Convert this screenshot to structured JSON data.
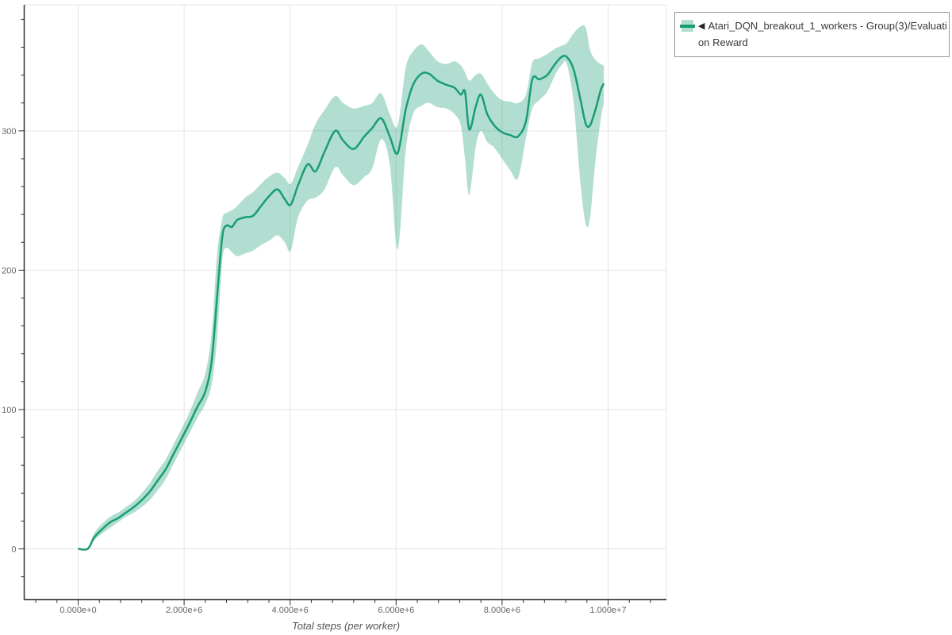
{
  "colors": {
    "line": "#199d76",
    "band": "rgba(25,157,118,0.34)",
    "grid": "#e4e4e4",
    "axis": "#2f2f2f",
    "tick_label": "#666666",
    "axis_title": "#555555",
    "legend_border": "#979797",
    "legend_text": "#3a3a3a",
    "background": "#ffffff"
  },
  "legend": {
    "toggle_icon": "left-triangle",
    "toggle_glyph": "◀",
    "label_line1": "Atari_DQN_breakout_1_workers - Group(3)/Evaluati",
    "label_line2": "on Reward",
    "full_label": "Atari_DQN_breakout_1_workers - Group(3)/Evaluation Reward"
  },
  "chart_data": {
    "type": "line",
    "title": "",
    "xlabel": "Total steps (per worker)",
    "ylabel": "",
    "grid": true,
    "legend_position": "top-right",
    "x_unit": "steps (millions)",
    "xlim_e6": [
      -1.02,
      11.1
    ],
    "ylim": [
      -36.5,
      390
    ],
    "x_ticks": [
      {
        "value_e6": 0,
        "label": "0.000e+0"
      },
      {
        "value_e6": 2,
        "label": "2.000e+6"
      },
      {
        "value_e6": 4,
        "label": "4.000e+6"
      },
      {
        "value_e6": 6,
        "label": "6.000e+6"
      },
      {
        "value_e6": 8,
        "label": "8.000e+6"
      },
      {
        "value_e6": 10,
        "label": "1.000e+7"
      }
    ],
    "x_minor_step_e6": 0.4,
    "y_ticks": [
      {
        "value": 0,
        "label": "0"
      },
      {
        "value": 100,
        "label": "100"
      },
      {
        "value": 200,
        "label": "200"
      },
      {
        "value": 300,
        "label": "300"
      }
    ],
    "y_minor_step": 20,
    "series": [
      {
        "name": "Atari_DQN_breakout_1_workers - Group(3)/Evaluation Reward",
        "style": "line-with-confidence-band",
        "points_format": [
          "steps_e6",
          "lower",
          "mean",
          "upper"
        ],
        "points": [
          [
            0.0,
            0,
            0,
            1
          ],
          [
            0.18,
            0,
            0,
            1
          ],
          [
            0.3,
            6,
            8,
            11
          ],
          [
            0.45,
            11,
            14,
            18
          ],
          [
            0.6,
            15,
            19,
            23
          ],
          [
            0.75,
            19,
            22,
            26
          ],
          [
            0.9,
            23,
            26,
            30
          ],
          [
            1.05,
            26,
            30,
            34
          ],
          [
            1.2,
            30,
            35,
            40
          ],
          [
            1.35,
            35,
            41,
            47
          ],
          [
            1.5,
            42,
            49,
            56
          ],
          [
            1.65,
            50,
            57,
            64
          ],
          [
            1.8,
            61,
            68,
            75
          ],
          [
            1.95,
            72,
            79,
            86
          ],
          [
            2.1,
            83,
            90,
            98
          ],
          [
            2.25,
            94,
            102,
            112
          ],
          [
            2.4,
            104,
            113,
            126
          ],
          [
            2.52,
            118,
            135,
            155
          ],
          [
            2.62,
            150,
            180,
            210
          ],
          [
            2.72,
            207,
            224,
            237
          ],
          [
            2.8,
            216,
            232,
            241
          ],
          [
            2.9,
            213,
            231,
            243
          ],
          [
            3.0,
            210,
            236,
            246
          ],
          [
            3.15,
            212,
            238,
            252
          ],
          [
            3.3,
            214,
            239,
            256
          ],
          [
            3.45,
            218,
            246,
            262
          ],
          [
            3.6,
            221,
            253,
            267
          ],
          [
            3.76,
            225,
            258,
            270
          ],
          [
            3.9,
            220,
            251,
            266
          ],
          [
            4.01,
            214,
            247,
            262
          ],
          [
            4.15,
            238,
            261,
            274
          ],
          [
            4.33,
            250,
            276,
            290
          ],
          [
            4.48,
            252,
            271,
            305
          ],
          [
            4.65,
            258,
            285,
            315
          ],
          [
            4.85,
            274,
            300,
            325
          ],
          [
            5.0,
            268,
            293,
            320
          ],
          [
            5.2,
            261,
            287,
            316
          ],
          [
            5.4,
            267,
            296,
            318
          ],
          [
            5.55,
            273,
            302,
            320
          ],
          [
            5.72,
            294,
            309,
            327
          ],
          [
            5.88,
            276,
            296,
            312
          ],
          [
            6.03,
            215,
            284,
            304
          ],
          [
            6.18,
            285,
            315,
            345
          ],
          [
            6.32,
            312,
            333,
            357
          ],
          [
            6.48,
            318,
            341,
            362
          ],
          [
            6.62,
            320,
            341,
            357
          ],
          [
            6.78,
            317,
            336,
            350
          ],
          [
            6.95,
            316,
            333,
            348
          ],
          [
            7.1,
            312,
            331,
            350
          ],
          [
            7.22,
            304,
            326,
            347
          ],
          [
            7.3,
            280,
            328,
            342
          ],
          [
            7.38,
            254,
            301,
            336
          ],
          [
            7.5,
            288,
            317,
            340
          ],
          [
            7.6,
            300,
            326,
            341
          ],
          [
            7.72,
            292,
            312,
            334
          ],
          [
            7.85,
            288,
            304,
            327
          ],
          [
            8.0,
            280,
            299,
            322
          ],
          [
            8.15,
            272,
            297,
            321
          ],
          [
            8.3,
            266,
            296,
            320
          ],
          [
            8.45,
            295,
            307,
            326
          ],
          [
            8.57,
            316,
            337,
            349
          ],
          [
            8.7,
            322,
            337,
            352
          ],
          [
            8.85,
            328,
            340,
            355
          ],
          [
            9.0,
            340,
            348,
            359
          ],
          [
            9.12,
            347,
            353,
            361
          ],
          [
            9.22,
            348,
            353,
            363
          ],
          [
            9.35,
            320,
            344,
            370
          ],
          [
            9.48,
            262,
            322,
            375
          ],
          [
            9.58,
            233,
            305,
            374
          ],
          [
            9.66,
            238,
            304,
            358
          ],
          [
            9.76,
            278,
            315,
            351
          ],
          [
            9.86,
            308,
            329,
            348
          ],
          [
            9.92,
            320,
            334,
            347
          ]
        ]
      }
    ]
  }
}
